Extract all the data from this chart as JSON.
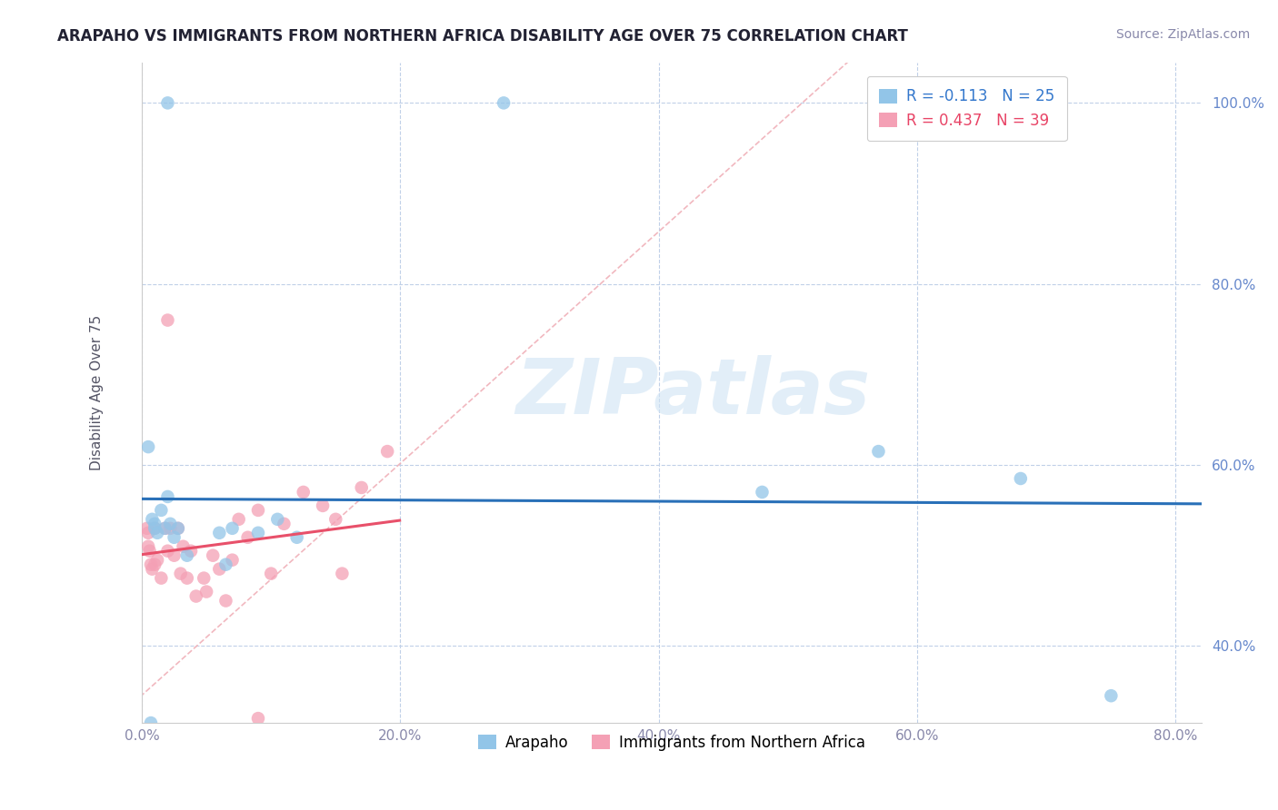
{
  "title": "ARAPAHO VS IMMIGRANTS FROM NORTHERN AFRICA DISABILITY AGE OVER 75 CORRELATION CHART",
  "source": "Source: ZipAtlas.com",
  "ylabel": "Disability Age Over 75",
  "xlim": [
    0.0,
    0.82
  ],
  "ylim": [
    0.315,
    1.045
  ],
  "xticks": [
    0.0,
    0.2,
    0.4,
    0.6,
    0.8
  ],
  "xticklabels": [
    "0.0%",
    "20.0%",
    "40.0%",
    "60.0%",
    "80.0%"
  ],
  "yticks": [
    0.4,
    0.6,
    0.8,
    1.0
  ],
  "yticklabels": [
    "40.0%",
    "60.0%",
    "80.0%",
    "100.0%"
  ],
  "arapaho_color": "#92C5E8",
  "africa_color": "#F4A0B5",
  "arapaho_line_color": "#2970B8",
  "africa_line_color": "#E8506A",
  "diag_color": "#F0B0B8",
  "arapaho_R": -0.113,
  "arapaho_N": 25,
  "africa_R": 0.437,
  "africa_N": 39,
  "legend_label_1": "Arapaho",
  "legend_label_2": "Immigrants from Northern Africa",
  "watermark_text": "ZIPatlas",
  "arapaho_x": [
    0.02,
    0.28,
    0.005,
    0.008,
    0.01,
    0.01,
    0.012,
    0.015,
    0.018,
    0.02,
    0.022,
    0.025,
    0.028,
    0.035,
    0.06,
    0.065,
    0.07,
    0.09,
    0.105,
    0.12,
    0.48,
    0.57,
    0.68,
    0.75,
    0.007
  ],
  "arapaho_y": [
    1.0,
    1.0,
    0.62,
    0.54,
    0.535,
    0.53,
    0.525,
    0.55,
    0.53,
    0.565,
    0.535,
    0.52,
    0.53,
    0.5,
    0.525,
    0.49,
    0.53,
    0.525,
    0.54,
    0.52,
    0.57,
    0.615,
    0.585,
    0.345,
    0.315
  ],
  "africa_x": [
    0.004,
    0.005,
    0.005,
    0.006,
    0.007,
    0.008,
    0.01,
    0.01,
    0.012,
    0.015,
    0.018,
    0.02,
    0.022,
    0.025,
    0.028,
    0.03,
    0.032,
    0.035,
    0.038,
    0.042,
    0.048,
    0.05,
    0.055,
    0.06,
    0.065,
    0.07,
    0.075,
    0.082,
    0.09,
    0.1,
    0.11,
    0.125,
    0.14,
    0.15,
    0.155,
    0.17,
    0.19,
    0.02,
    0.09
  ],
  "africa_y": [
    0.53,
    0.525,
    0.51,
    0.505,
    0.49,
    0.485,
    0.53,
    0.49,
    0.495,
    0.475,
    0.53,
    0.505,
    0.53,
    0.5,
    0.53,
    0.48,
    0.51,
    0.475,
    0.505,
    0.455,
    0.475,
    0.46,
    0.5,
    0.485,
    0.45,
    0.495,
    0.54,
    0.52,
    0.55,
    0.48,
    0.535,
    0.57,
    0.555,
    0.54,
    0.48,
    0.575,
    0.615,
    0.76,
    0.32
  ],
  "title_fontsize": 12,
  "axis_label_fontsize": 11,
  "tick_fontsize": 11,
  "legend_fontsize": 12,
  "source_fontsize": 10
}
